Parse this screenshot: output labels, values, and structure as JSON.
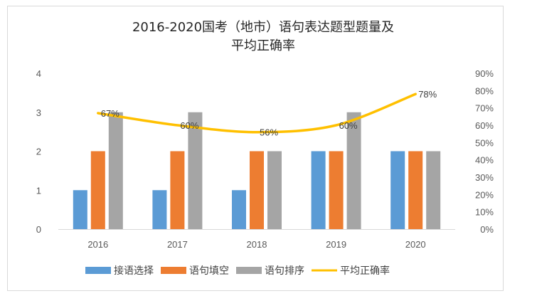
{
  "chart_data": {
    "type": "bar",
    "title_lines": [
      "2016-2020国考（地市）语句表达题型题量及",
      "平均正确率"
    ],
    "categories": [
      "2016",
      "2017",
      "2018",
      "2019",
      "2020"
    ],
    "series": [
      {
        "name": "接语选择",
        "type": "bar",
        "axis": "left",
        "color": "#5B9BD5",
        "values": [
          1,
          1,
          1,
          2,
          2
        ]
      },
      {
        "name": "语句填空",
        "type": "bar",
        "axis": "left",
        "color": "#ED7D31",
        "values": [
          2,
          2,
          2,
          2,
          2
        ]
      },
      {
        "name": "语句排序",
        "type": "bar",
        "axis": "left",
        "color": "#A5A5A5",
        "values": [
          3,
          3,
          2,
          3,
          2
        ]
      },
      {
        "name": "平均正确率",
        "type": "line",
        "axis": "right",
        "color": "#FFC000",
        "values": [
          0.67,
          0.6,
          0.56,
          0.6,
          0.78
        ],
        "labels": [
          "67%",
          "60%",
          "56%",
          "60%",
          "78%"
        ]
      }
    ],
    "y_left": {
      "min": 0,
      "max": 4,
      "ticks": [
        "0",
        "1",
        "2",
        "3",
        "4"
      ]
    },
    "y_right": {
      "min": 0,
      "max": 0.9,
      "ticks": [
        "0%",
        "10%",
        "20%",
        "30%",
        "40%",
        "50%",
        "60%",
        "70%",
        "80%",
        "90%"
      ]
    },
    "grid": false,
    "legend_position": "bottom"
  }
}
